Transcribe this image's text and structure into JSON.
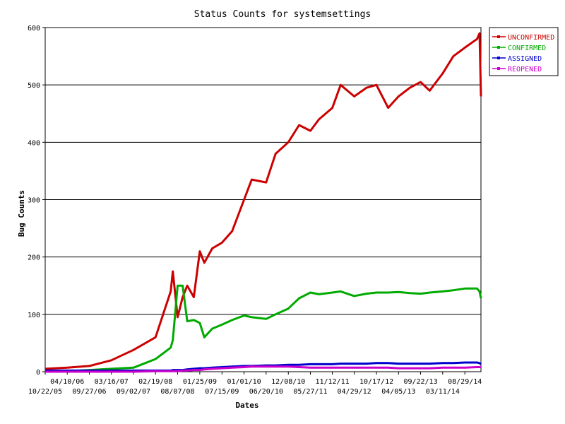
{
  "chart_data": {
    "type": "line",
    "title": "Status Counts for systemsettings",
    "xlabel": "Dates",
    "ylabel": "Bug Counts",
    "ylim": [
      0,
      600
    ],
    "yticks": [
      0,
      100,
      200,
      300,
      400,
      500,
      600
    ],
    "grid": "horizontal",
    "legend_position": "top-right",
    "x_tick_labels_upper": [
      "04/10/06",
      "03/16/07",
      "02/19/08",
      "01/25/09",
      "01/01/10",
      "12/08/10",
      "11/12/11",
      "10/17/12",
      "09/22/13",
      "08/29/14"
    ],
    "x_tick_labels_lower": [
      "10/22/05",
      "09/27/06",
      "09/02/07",
      "08/07/08",
      "07/15/09",
      "06/20/10",
      "05/27/11",
      "04/29/12",
      "04/05/13",
      "03/11/14"
    ],
    "x": [
      "10/22/05",
      "04/10/06",
      "09/27/06",
      "03/16/07",
      "09/02/07",
      "02/19/08",
      "06/15/08",
      "07/01/08",
      "08/07/08",
      "09/15/08",
      "10/20/08",
      "12/10/08",
      "01/25/09",
      "03/01/09",
      "05/01/09",
      "07/15/09",
      "10/01/09",
      "01/01/10",
      "03/01/10",
      "06/20/10",
      "09/01/10",
      "12/08/10",
      "03/01/11",
      "05/27/11",
      "08/01/11",
      "11/12/11",
      "01/15/12",
      "04/29/12",
      "08/01/12",
      "10/17/12",
      "01/15/13",
      "04/05/13",
      "07/01/13",
      "09/22/13",
      "12/01/13",
      "03/11/14",
      "06/01/14",
      "08/29/14",
      "12/01/14",
      "12/20/14",
      "12/31/14"
    ],
    "series": [
      {
        "name": "UNCONFIRMED",
        "color": "#cc0000",
        "values": [
          5,
          7,
          10,
          20,
          38,
          60,
          140,
          175,
          95,
          130,
          150,
          130,
          210,
          190,
          215,
          225,
          245,
          300,
          335,
          330,
          380,
          400,
          430,
          420,
          440,
          460,
          500,
          480,
          495,
          500,
          460,
          480,
          495,
          505,
          490,
          520,
          550,
          565,
          580,
          590,
          480
        ]
      },
      {
        "name": "CONFIRMED",
        "color": "#00aa00",
        "values": [
          0,
          1,
          3,
          5,
          7,
          22,
          42,
          55,
          150,
          150,
          88,
          90,
          85,
          60,
          75,
          82,
          90,
          98,
          95,
          92,
          100,
          110,
          128,
          138,
          135,
          138,
          140,
          132,
          136,
          138,
          138,
          139,
          137,
          136,
          138,
          140,
          142,
          145,
          145,
          140,
          128
        ]
      },
      {
        "name": "ASSIGNED",
        "color": "#0000cc",
        "values": [
          2,
          2,
          2,
          2,
          2,
          2,
          2,
          3,
          3,
          3,
          4,
          5,
          6,
          6,
          7,
          8,
          9,
          10,
          10,
          11,
          11,
          12,
          12,
          13,
          13,
          13,
          14,
          14,
          14,
          15,
          15,
          14,
          14,
          14,
          14,
          15,
          15,
          16,
          16,
          15,
          13
        ]
      },
      {
        "name": "REOPENED",
        "color": "#cc00cc",
        "values": [
          0,
          0,
          0,
          0,
          0,
          1,
          1,
          1,
          1,
          2,
          2,
          3,
          3,
          4,
          5,
          6,
          7,
          8,
          9,
          9,
          9,
          9,
          8,
          7,
          7,
          7,
          7,
          7,
          7,
          7,
          7,
          6,
          6,
          6,
          6,
          7,
          7,
          7,
          8,
          8,
          8
        ]
      }
    ]
  }
}
